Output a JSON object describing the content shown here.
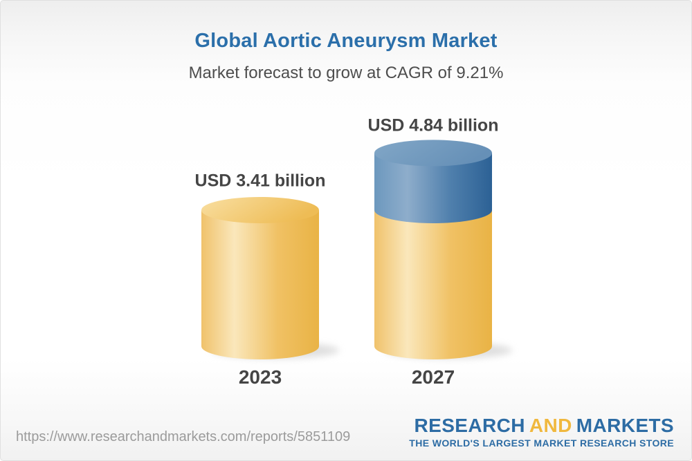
{
  "header": {
    "title": "Global Aortic Aneurysm Market",
    "subtitle": "Market forecast to grow at CAGR of 9.21%"
  },
  "chart_data": {
    "type": "bar",
    "variant": "3d-cylinder-stacked",
    "categories": [
      "2023",
      "2027"
    ],
    "values": [
      3.41,
      4.84
    ],
    "value_labels": [
      "USD 3.41 billion",
      "USD 4.84 billion"
    ],
    "unit": "USD billion",
    "cagr_percent": 9.21,
    "title": "Global Aortic Aneurysm Market",
    "subtitle": "Market forecast to grow at CAGR of 9.21%",
    "grid": false,
    "legend_position": "none",
    "axes_visible": false,
    "base_segment_color": "#F2C36A",
    "growth_segment_color": "#4C80AF",
    "growth_segment_note": "2027 bar shows 2023 base in yellow plus incremental growth in blue"
  },
  "footer": {
    "url": "https://www.researchandmarkets.com/reports/5851109",
    "logo": {
      "word1": "RESEARCH",
      "word2": "AND",
      "word3": "MARKETS",
      "tagline": "THE WORLD'S LARGEST MARKET RESEARCH STORE",
      "blue": "#2D6CA4",
      "gold": "#F0B83E"
    }
  }
}
